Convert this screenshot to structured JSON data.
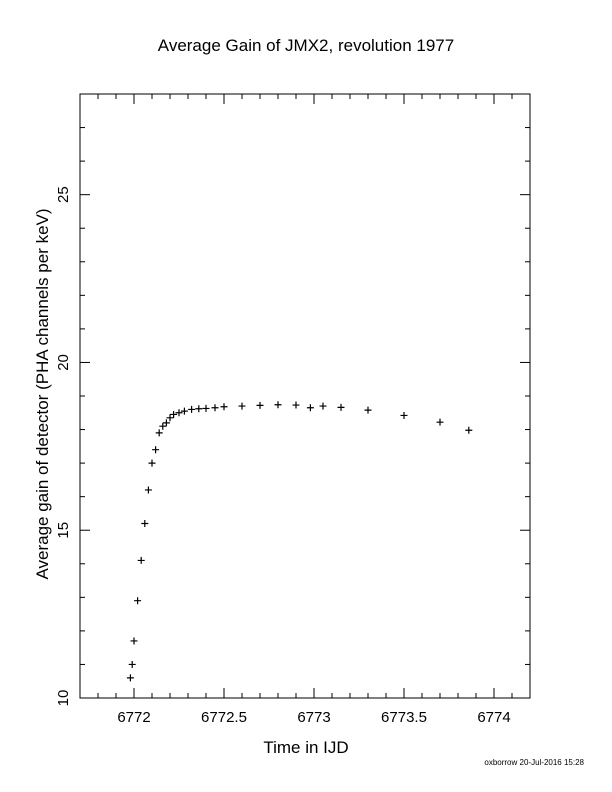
{
  "chart_data": {
    "type": "scatter",
    "title": "Average Gain of JMX2, revolution 1977",
    "xlabel": "Time in IJD",
    "ylabel": "Average gain of detector (PHA channels per keV)",
    "xlim": [
      6771.7,
      6774.2
    ],
    "ylim": [
      10,
      28
    ],
    "xticks": [
      6772,
      6772.5,
      6773,
      6773.5,
      6774
    ],
    "xtick_labels": [
      "6772",
      "6772.5",
      "6773",
      "6773.5",
      "6774"
    ],
    "yticks": [
      10,
      15,
      20,
      25
    ],
    "ytick_labels": [
      "10",
      "15",
      "20",
      "25"
    ],
    "grid": false,
    "marker": "+",
    "series": [
      {
        "x": [
          6771.98,
          6771.99,
          6772.0,
          6772.02,
          6772.04,
          6772.06,
          6772.08,
          6772.1,
          6772.12,
          6772.14,
          6772.16,
          6772.18,
          6772.2,
          6772.22,
          6772.25,
          6772.28,
          6772.32,
          6772.36,
          6772.4,
          6772.45,
          6772.5,
          6772.6,
          6772.7,
          6772.8,
          6772.9,
          6772.98,
          6773.05,
          6773.15,
          6773.3,
          6773.5,
          6773.7,
          6773.86
        ],
        "y": [
          10.6,
          11.0,
          11.7,
          12.9,
          14.1,
          15.2,
          16.2,
          17.0,
          17.4,
          17.9,
          18.1,
          18.2,
          18.35,
          18.45,
          18.5,
          18.55,
          18.6,
          18.62,
          18.63,
          18.65,
          18.68,
          18.7,
          18.72,
          18.74,
          18.73,
          18.65,
          18.7,
          18.66,
          18.58,
          18.42,
          18.22,
          17.98
        ]
      }
    ]
  },
  "footer": "oxborrow 20-Jul-2016 15:28"
}
